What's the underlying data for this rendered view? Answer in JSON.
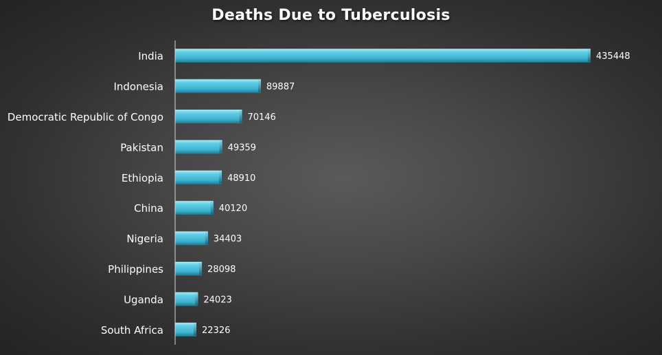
{
  "chart_data": {
    "type": "bar",
    "orientation": "horizontal",
    "title": "Deaths Due to Tuberculosis",
    "categories": [
      "India",
      "Indonesia",
      "Democratic Republic of Congo",
      "Pakistan",
      "Ethiopia",
      "China",
      "Nigeria",
      "Philippines",
      "Uganda",
      "South Africa"
    ],
    "values": [
      435448,
      89887,
      70146,
      49359,
      48910,
      40120,
      34403,
      28098,
      24023,
      22326
    ],
    "xlim": [
      0,
      435448
    ],
    "grid": false,
    "legend": "none",
    "colors": {
      "bar": "#4ec1dc",
      "bar_light": "#8fe0f2",
      "bar_dark": "#1f7f97",
      "text": "#ffffff",
      "axis": "#d8d8d8"
    }
  }
}
